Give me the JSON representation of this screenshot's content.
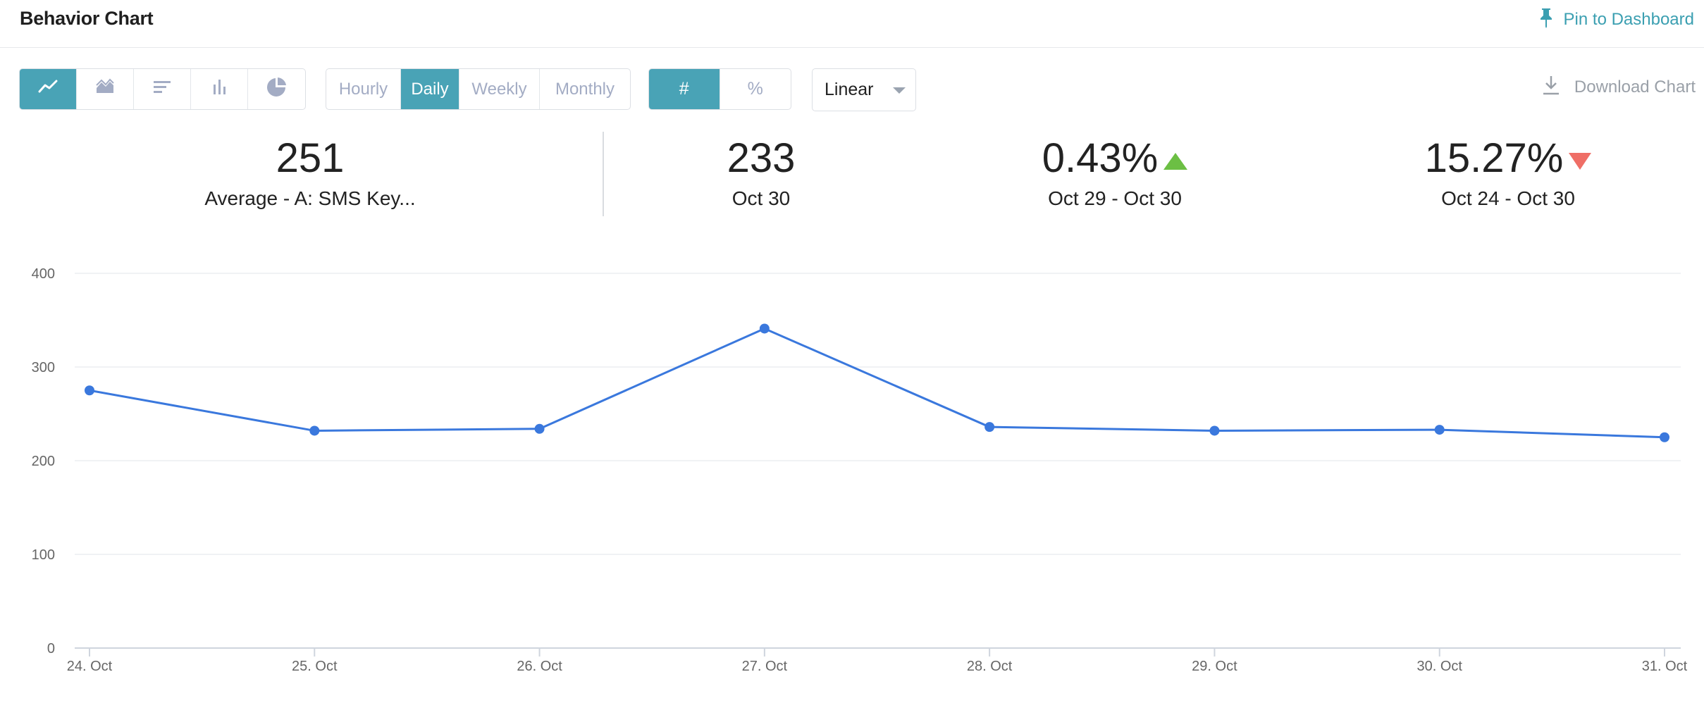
{
  "header": {
    "title": "Behavior Chart",
    "pin_label": "Pin to Dashboard",
    "pin_icon": "pin-icon"
  },
  "toolbar": {
    "chart_types": [
      {
        "name": "line-chart-icon",
        "active": true
      },
      {
        "name": "area-chart-icon",
        "active": false
      },
      {
        "name": "horizontal-bar-icon",
        "active": false
      },
      {
        "name": "bar-chart-icon",
        "active": false
      },
      {
        "name": "pie-chart-icon",
        "active": false
      }
    ],
    "granularity": [
      {
        "label": "Hourly",
        "active": false
      },
      {
        "label": "Daily",
        "active": true
      },
      {
        "label": "Weekly",
        "active": false
      },
      {
        "label": "Monthly",
        "active": false
      }
    ],
    "metric_mode": [
      {
        "label": "#",
        "active": true
      },
      {
        "label": "%",
        "active": false
      }
    ],
    "scale": "Linear",
    "download_label": "Download Chart",
    "download_icon": "download-icon"
  },
  "stats": [
    {
      "value": "251",
      "caption": "Average - A: SMS Key..."
    },
    {
      "value": "233",
      "caption": "Oct 30"
    },
    {
      "value": "0.43%",
      "caption": "Oct 29 - Oct 30",
      "trend": "up"
    },
    {
      "value": "15.27%",
      "caption": "Oct 24 - Oct 30",
      "trend": "down"
    }
  ],
  "colors": {
    "accent": "#49a3b6",
    "line": "#3a78dd",
    "trend_up": "#6cbf44",
    "trend_down": "#ef6e66"
  },
  "chart_data": {
    "type": "line",
    "categories": [
      "24. Oct",
      "25. Oct",
      "26. Oct",
      "27. Oct",
      "28. Oct",
      "29. Oct",
      "30. Oct",
      "31. Oct"
    ],
    "series": [
      {
        "values": [
          275,
          232,
          234,
          341,
          236,
          232,
          233,
          225
        ]
      }
    ],
    "yticks": [
      0,
      100,
      200,
      300,
      400
    ],
    "ylim": [
      0,
      400
    ],
    "grid": true,
    "legend": "none"
  }
}
